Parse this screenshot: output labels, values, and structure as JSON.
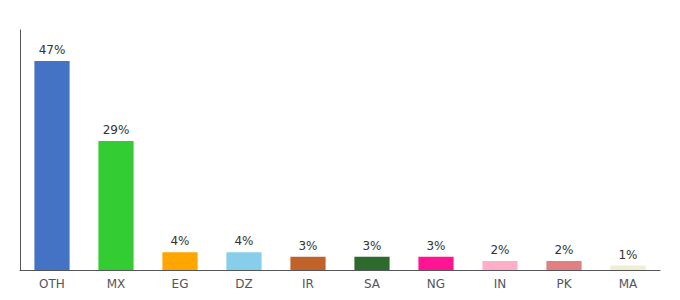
{
  "chart_data": {
    "type": "bar",
    "categories": [
      "OTH",
      "MX",
      "EG",
      "DZ",
      "IR",
      "SA",
      "NG",
      "IN",
      "PK",
      "MA"
    ],
    "values": [
      47,
      29,
      4,
      4,
      3,
      3,
      3,
      2,
      2,
      1
    ],
    "value_labels": [
      "47%",
      "29%",
      "4%",
      "4%",
      "3%",
      "3%",
      "3%",
      "2%",
      "2%",
      "1%"
    ],
    "colors": [
      "#4472C4",
      "#33CC33",
      "#FFA500",
      "#87CEEB",
      "#C0622A",
      "#2D6B2D",
      "#FF1493",
      "#FFB0C8",
      "#E08080",
      "#F0EDD0"
    ],
    "ylim": [
      0,
      54
    ],
    "data_labels": true,
    "tick_labels": "x",
    "grid": false
  }
}
